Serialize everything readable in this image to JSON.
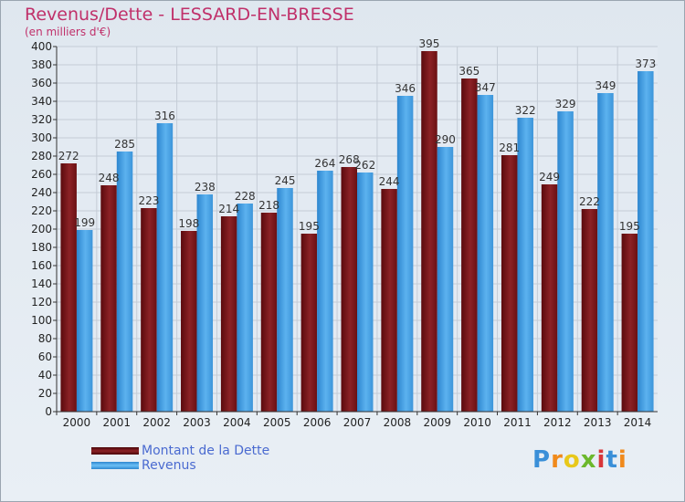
{
  "chart_data": {
    "type": "bar",
    "title": "Revenus/Dette - LESSARD-EN-BRESSE",
    "subtitle": "(en milliers d'€)",
    "categories": [
      "2000",
      "2001",
      "2002",
      "2003",
      "2004",
      "2005",
      "2006",
      "2007",
      "2008",
      "2009",
      "2010",
      "2011",
      "2012",
      "2013",
      "2014"
    ],
    "series": [
      {
        "name": "Montant de la Dette",
        "color": "#7a1518",
        "values": [
          272,
          248,
          223,
          198,
          214,
          218,
          195,
          268,
          244,
          395,
          365,
          281,
          249,
          222,
          195
        ]
      },
      {
        "name": "Revenus",
        "color": "#4aa3e6",
        "values": [
          199,
          285,
          316,
          238,
          228,
          245,
          264,
          262,
          346,
          290,
          347,
          322,
          329,
          349,
          373
        ]
      }
    ],
    "ylim": [
      0,
      400
    ],
    "ytick_step": 20,
    "grid": true,
    "legend": "bottom-left"
  },
  "logo": {
    "text": "Proxiti",
    "colors": [
      "#3a8fd8",
      "#f08a1c",
      "#e8c81a",
      "#6cb82c",
      "#d8363a",
      "#3a8fd8",
      "#f08a1c"
    ]
  }
}
